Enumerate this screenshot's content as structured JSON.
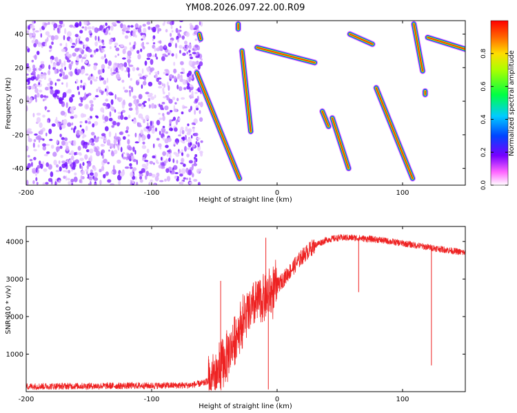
{
  "figure_title": "YM08.2026.097.22.00.R09",
  "chart_data": [
    {
      "type": "heatmap",
      "xlabel": "Height of straight line (km)",
      "ylabel": "Frequency (Hz)",
      "xlim": [
        -200,
        150
      ],
      "ylim": [
        -50,
        48
      ],
      "x_ticks": [
        -200,
        -100,
        0,
        100
      ],
      "y_ticks": [
        -40,
        -20,
        0,
        20,
        40
      ],
      "colorbar": {
        "label": "Normalized spectral amplitude",
        "range": [
          0,
          1
        ],
        "ticks": [
          0.0,
          0.2,
          0.4,
          0.6,
          0.8
        ],
        "colormap": [
          "#ffffff",
          "#ff44ff",
          "#6600ff",
          "#0055ff",
          "#00dddd",
          "#00ff00",
          "#ffff00",
          "#ff8800",
          "#ff0000"
        ]
      },
      "noise_region": {
        "x_range": [
          -200,
          -60
        ],
        "y_range": [
          -50,
          48
        ],
        "typical_amplitude": 0.15
      },
      "tracks": [
        {
          "from": [
            -62,
            40
          ],
          "to": [
            -61,
            37
          ]
        },
        {
          "from": [
            -64,
            17
          ],
          "to": [
            -30,
            -46
          ]
        },
        {
          "from": [
            -31,
            46
          ],
          "to": [
            -31,
            43
          ]
        },
        {
          "from": [
            -28,
            30
          ],
          "to": [
            -21,
            -18
          ]
        },
        {
          "from": [
            -16,
            32
          ],
          "to": [
            30,
            23
          ]
        },
        {
          "from": [
            36,
            -6
          ],
          "to": [
            41,
            -15
          ]
        },
        {
          "from": [
            44,
            -10
          ],
          "to": [
            57,
            -40
          ]
        },
        {
          "from": [
            58,
            40
          ],
          "to": [
            76,
            34
          ]
        },
        {
          "from": [
            79,
            8
          ],
          "to": [
            108,
            -46
          ]
        },
        {
          "from": [
            109,
            46
          ],
          "to": [
            116,
            18
          ]
        },
        {
          "from": [
            118,
            6
          ],
          "to": [
            118,
            4
          ]
        },
        {
          "from": [
            120,
            38
          ],
          "to": [
            150,
            31
          ]
        }
      ],
      "track_peak_amplitude": 0.95
    },
    {
      "type": "line",
      "xlabel": "Height of straight line (km)",
      "ylabel": "SNR (10 * v/v)",
      "xlim": [
        -200,
        150
      ],
      "ylim": [
        0,
        4400
      ],
      "x_ticks": [
        -200,
        -100,
        0,
        100
      ],
      "y_ticks": [
        1000,
        2000,
        3000,
        4000
      ],
      "series_color": "#ee2222",
      "x": [
        -200,
        -150,
        -100,
        -70,
        -58,
        -50,
        -40,
        -35,
        -30,
        -25,
        -20,
        -15,
        -10,
        -5,
        0,
        10,
        20,
        30,
        40,
        50,
        60,
        80,
        100,
        120,
        140,
        150
      ],
      "y": [
        140,
        150,
        160,
        170,
        230,
        400,
        900,
        1300,
        1700,
        2000,
        2200,
        2400,
        2500,
        2600,
        2800,
        3200,
        3600,
        3900,
        4050,
        4100,
        4100,
        4050,
        3950,
        3850,
        3750,
        3700
      ],
      "noise_amplitude": 90,
      "spikes": [
        {
          "x": -45,
          "y": 2950
        },
        {
          "x": -9,
          "y": 4100
        },
        {
          "x": -7,
          "y": 60
        },
        {
          "x": 65,
          "y": 2650
        },
        {
          "x": 123,
          "y": 700
        }
      ]
    }
  ]
}
